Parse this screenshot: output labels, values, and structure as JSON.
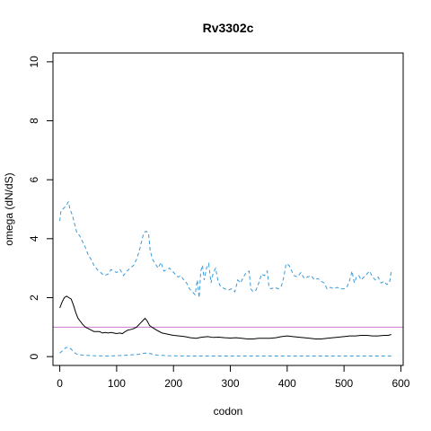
{
  "chart_data": {
    "type": "line",
    "title": "Rv3302c",
    "xlabel": "codon",
    "ylabel": "omega (dN/dS)",
    "xlim": [
      -12,
      604
    ],
    "ylim": [
      -0.3,
      10.3
    ],
    "xticks": [
      0,
      100,
      200,
      300,
      400,
      500,
      600
    ],
    "yticks": [
      0,
      2,
      4,
      6,
      8,
      10
    ],
    "reference_line": {
      "y": 1,
      "color": "#c77cc7"
    },
    "grid": false,
    "legend": "none",
    "series": [
      {
        "style": "dashed",
        "color": "#3a9ad9",
        "points": [
          [
            0,
            4.6
          ],
          [
            2,
            4.95
          ],
          [
            8,
            5.05
          ],
          [
            12,
            5.15
          ],
          [
            15,
            5.25
          ],
          [
            18,
            5.0
          ],
          [
            22,
            4.8
          ],
          [
            26,
            4.5
          ],
          [
            30,
            4.2
          ],
          [
            35,
            4.1
          ],
          [
            40,
            3.9
          ],
          [
            45,
            3.7
          ],
          [
            50,
            3.45
          ],
          [
            55,
            3.3
          ],
          [
            60,
            3.1
          ],
          [
            66,
            2.95
          ],
          [
            72,
            2.85
          ],
          [
            78,
            2.75
          ],
          [
            85,
            2.8
          ],
          [
            90,
            2.95
          ],
          [
            95,
            2.9
          ],
          [
            100,
            2.85
          ],
          [
            106,
            2.95
          ],
          [
            112,
            2.75
          ],
          [
            118,
            2.9
          ],
          [
            124,
            3.0
          ],
          [
            130,
            3.1
          ],
          [
            135,
            3.3
          ],
          [
            140,
            3.6
          ],
          [
            145,
            4.0
          ],
          [
            148,
            4.2
          ],
          [
            152,
            4.25
          ],
          [
            156,
            4.2
          ],
          [
            159,
            3.6
          ],
          [
            163,
            3.3
          ],
          [
            168,
            3.15
          ],
          [
            173,
            3.0
          ],
          [
            178,
            3.2
          ],
          [
            183,
            2.9
          ],
          [
            188,
            2.95
          ],
          [
            193,
            3.0
          ],
          [
            198,
            2.9
          ],
          [
            203,
            2.8
          ],
          [
            208,
            2.7
          ],
          [
            213,
            2.75
          ],
          [
            218,
            2.6
          ],
          [
            223,
            2.5
          ],
          [
            228,
            2.3
          ],
          [
            233,
            2.2
          ],
          [
            238,
            2.1
          ],
          [
            242,
            2.6
          ],
          [
            245,
            2.0
          ],
          [
            248,
            2.9
          ],
          [
            251,
            3.1
          ],
          [
            254,
            2.6
          ],
          [
            258,
            3.0
          ],
          [
            262,
            3.15
          ],
          [
            266,
            2.5
          ],
          [
            270,
            2.85
          ],
          [
            274,
            3.0
          ],
          [
            278,
            2.6
          ],
          [
            282,
            2.4
          ],
          [
            286,
            2.35
          ],
          [
            290,
            2.3
          ],
          [
            296,
            2.25
          ],
          [
            302,
            2.3
          ],
          [
            308,
            2.2
          ],
          [
            313,
            2.6
          ],
          [
            318,
            2.5
          ],
          [
            323,
            2.7
          ],
          [
            328,
            2.85
          ],
          [
            333,
            2.9
          ],
          [
            336,
            2.3
          ],
          [
            340,
            2.2
          ],
          [
            345,
            2.25
          ],
          [
            350,
            2.5
          ],
          [
            355,
            2.8
          ],
          [
            360,
            2.75
          ],
          [
            365,
            2.9
          ],
          [
            368,
            2.35
          ],
          [
            372,
            2.3
          ],
          [
            378,
            2.35
          ],
          [
            384,
            2.3
          ],
          [
            390,
            2.4
          ],
          [
            394,
            2.7
          ],
          [
            398,
            3.15
          ],
          [
            403,
            3.1
          ],
          [
            408,
            2.9
          ],
          [
            412,
            2.75
          ],
          [
            418,
            2.7
          ],
          [
            424,
            2.85
          ],
          [
            430,
            2.65
          ],
          [
            436,
            2.7
          ],
          [
            442,
            2.75
          ],
          [
            448,
            2.6
          ],
          [
            454,
            2.65
          ],
          [
            460,
            2.55
          ],
          [
            465,
            2.5
          ],
          [
            470,
            2.3
          ],
          [
            476,
            2.35
          ],
          [
            482,
            2.3
          ],
          [
            488,
            2.35
          ],
          [
            494,
            2.3
          ],
          [
            500,
            2.3
          ],
          [
            505,
            2.35
          ],
          [
            510,
            2.6
          ],
          [
            514,
            2.9
          ],
          [
            518,
            2.5
          ],
          [
            522,
            2.7
          ],
          [
            526,
            2.75
          ],
          [
            530,
            2.6
          ],
          [
            535,
            2.7
          ],
          [
            540,
            2.8
          ],
          [
            545,
            2.9
          ],
          [
            550,
            2.7
          ],
          [
            555,
            2.6
          ],
          [
            560,
            2.7
          ],
          [
            565,
            2.5
          ],
          [
            570,
            2.55
          ],
          [
            575,
            2.45
          ],
          [
            580,
            2.5
          ],
          [
            583,
            2.9
          ]
        ]
      },
      {
        "style": "solid",
        "color": "#000000",
        "points": [
          [
            0,
            1.65
          ],
          [
            4,
            1.85
          ],
          [
            8,
            2.0
          ],
          [
            12,
            2.05
          ],
          [
            16,
            2.0
          ],
          [
            20,
            1.95
          ],
          [
            24,
            1.75
          ],
          [
            28,
            1.5
          ],
          [
            32,
            1.3
          ],
          [
            36,
            1.2
          ],
          [
            40,
            1.1
          ],
          [
            45,
            1.0
          ],
          [
            50,
            0.95
          ],
          [
            55,
            0.9
          ],
          [
            60,
            0.85
          ],
          [
            65,
            0.85
          ],
          [
            70,
            0.85
          ],
          [
            75,
            0.8
          ],
          [
            80,
            0.82
          ],
          [
            85,
            0.8
          ],
          [
            90,
            0.82
          ],
          [
            95,
            0.8
          ],
          [
            100,
            0.78
          ],
          [
            105,
            0.8
          ],
          [
            110,
            0.78
          ],
          [
            115,
            0.85
          ],
          [
            120,
            0.9
          ],
          [
            125,
            0.92
          ],
          [
            130,
            0.95
          ],
          [
            135,
            1.0
          ],
          [
            140,
            1.1
          ],
          [
            145,
            1.2
          ],
          [
            150,
            1.3
          ],
          [
            154,
            1.2
          ],
          [
            158,
            1.05
          ],
          [
            162,
            1.0
          ],
          [
            166,
            0.95
          ],
          [
            170,
            0.9
          ],
          [
            175,
            0.85
          ],
          [
            180,
            0.8
          ],
          [
            185,
            0.78
          ],
          [
            190,
            0.76
          ],
          [
            195,
            0.74
          ],
          [
            200,
            0.72
          ],
          [
            210,
            0.7
          ],
          [
            220,
            0.68
          ],
          [
            230,
            0.64
          ],
          [
            240,
            0.62
          ],
          [
            250,
            0.66
          ],
          [
            260,
            0.68
          ],
          [
            270,
            0.65
          ],
          [
            280,
            0.66
          ],
          [
            290,
            0.64
          ],
          [
            300,
            0.63
          ],
          [
            310,
            0.64
          ],
          [
            320,
            0.62
          ],
          [
            330,
            0.6
          ],
          [
            340,
            0.6
          ],
          [
            350,
            0.62
          ],
          [
            360,
            0.62
          ],
          [
            370,
            0.62
          ],
          [
            380,
            0.64
          ],
          [
            390,
            0.68
          ],
          [
            400,
            0.7
          ],
          [
            410,
            0.68
          ],
          [
            420,
            0.66
          ],
          [
            430,
            0.64
          ],
          [
            440,
            0.62
          ],
          [
            450,
            0.6
          ],
          [
            460,
            0.6
          ],
          [
            470,
            0.62
          ],
          [
            480,
            0.64
          ],
          [
            490,
            0.66
          ],
          [
            500,
            0.68
          ],
          [
            510,
            0.7
          ],
          [
            520,
            0.7
          ],
          [
            530,
            0.72
          ],
          [
            540,
            0.72
          ],
          [
            550,
            0.7
          ],
          [
            560,
            0.7
          ],
          [
            570,
            0.72
          ],
          [
            578,
            0.72
          ],
          [
            583,
            0.75
          ]
        ]
      },
      {
        "style": "dashed",
        "color": "#3a9ad9",
        "points": [
          [
            0,
            0.12
          ],
          [
            5,
            0.2
          ],
          [
            10,
            0.3
          ],
          [
            15,
            0.32
          ],
          [
            20,
            0.25
          ],
          [
            25,
            0.15
          ],
          [
            30,
            0.08
          ],
          [
            40,
            0.05
          ],
          [
            60,
            0.03
          ],
          [
            80,
            0.02
          ],
          [
            100,
            0.03
          ],
          [
            120,
            0.05
          ],
          [
            140,
            0.08
          ],
          [
            150,
            0.12
          ],
          [
            160,
            0.1
          ],
          [
            170,
            0.05
          ],
          [
            190,
            0.03
          ],
          [
            220,
            0.02
          ],
          [
            300,
            0.02
          ],
          [
            400,
            0.02
          ],
          [
            500,
            0.02
          ],
          [
            583,
            0.02
          ]
        ]
      }
    ]
  }
}
